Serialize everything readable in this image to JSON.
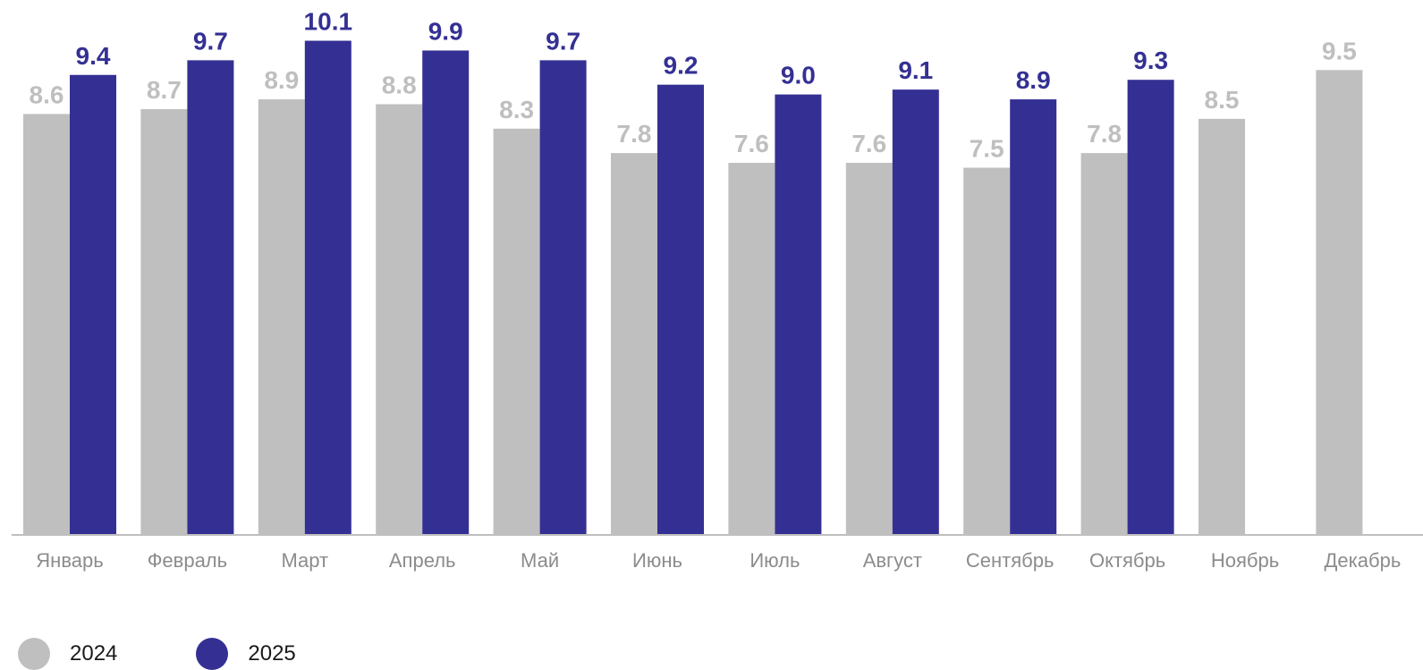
{
  "colors": {
    "series_2024": "#bfbfbf",
    "series_2025": "#343093",
    "axis_line": "#bfbfbf",
    "tick_label": "#8c8c8c"
  },
  "legend": {
    "items": [
      {
        "label": "2024",
        "color": "#bfbfbf"
      },
      {
        "label": "2025",
        "color": "#343093"
      }
    ]
  },
  "chart_data": {
    "type": "bar",
    "title": "",
    "xlabel": "",
    "ylabel": "",
    "ylim": [
      0,
      10.8
    ],
    "grid": false,
    "legend_position": "bottom-left",
    "categories": [
      "Январь",
      "Февраль",
      "Март",
      "Апрель",
      "Май",
      "Июнь",
      "Июль",
      "Август",
      "Сентябрь",
      "Октябрь",
      "Ноябрь",
      "Декабрь"
    ],
    "series": [
      {
        "name": "2024",
        "values": [
          8.6,
          8.7,
          8.9,
          8.8,
          8.3,
          7.8,
          7.6,
          7.6,
          7.5,
          7.8,
          8.5,
          9.5
        ],
        "labels": [
          "8.6",
          "8.7",
          "8.9",
          "8.8",
          "8.3",
          "7.8",
          "7.6",
          "7.6",
          "7.5",
          "7.8",
          "8.5",
          "9.5"
        ]
      },
      {
        "name": "2025",
        "values": [
          9.4,
          9.7,
          10.1,
          9.9,
          9.7,
          9.2,
          9.0,
          9.1,
          8.9,
          9.3,
          null,
          null
        ],
        "labels": [
          "9.4",
          "9.7",
          "10.1",
          "9.9",
          "9.7",
          "9.2",
          "9.0",
          "9.1",
          "8.9",
          "9.3",
          null,
          null
        ]
      }
    ]
  }
}
